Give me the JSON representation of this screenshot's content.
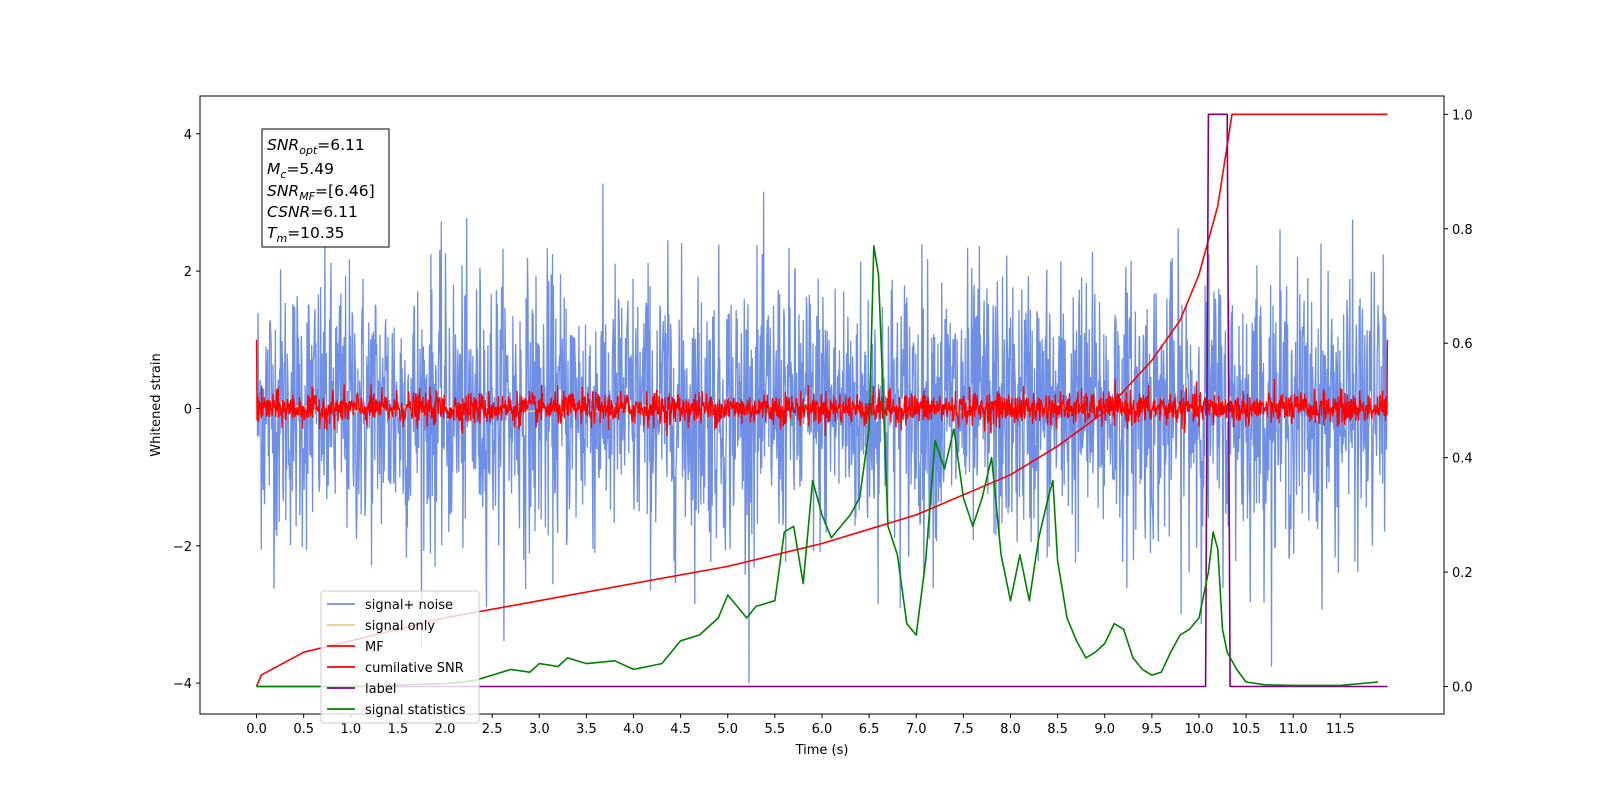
{
  "chart_data": {
    "type": "line",
    "xlabel": "Time (s)",
    "ylabel": "Whitened strain",
    "xlim": [
      -0.6,
      12.6
    ],
    "ylim_left": [
      -4.45,
      4.55
    ],
    "ylim_right": [
      -0.048,
      1.032
    ],
    "x_ticks": [
      "0.0",
      "0.5",
      "1.0",
      "1.5",
      "2.0",
      "2.5",
      "3.0",
      "3.5",
      "4.0",
      "4.5",
      "5.0",
      "5.5",
      "6.0",
      "6.5",
      "7.0",
      "7.5",
      "8.0",
      "8.5",
      "9.0",
      "9.5",
      "10.0",
      "10.5",
      "11.0",
      "11.5"
    ],
    "y_ticks_left": [
      -4,
      -2,
      0,
      2,
      4
    ],
    "y_ticks_right": [
      "0.0",
      "0.2",
      "0.4",
      "0.6",
      "0.8",
      "1.0"
    ],
    "grid": false,
    "legend_placement": "lower-left",
    "series": [
      {
        "name": "signal+ noise",
        "color": "#6f8fe6",
        "axis": "left",
        "style": "noise",
        "x_range": [
          0.0,
          12.0
        ],
        "amplitude_sd": 1.0
      },
      {
        "name": "signal only",
        "color": "#f5c77e",
        "axis": "left",
        "style": "chirp",
        "x_range": [
          0.0,
          10.35
        ]
      },
      {
        "name": "MF",
        "color": "#ff0000",
        "axis": "left",
        "style": "noise",
        "x_range": [
          0.0,
          12.0
        ],
        "amplitude_sd": 0.12
      },
      {
        "name": "cumilative SNR",
        "color": "#ff0000",
        "axis": "right",
        "x": [
          0.0,
          0.05,
          0.5,
          1.0,
          1.5,
          2.0,
          3.0,
          4.0,
          5.0,
          6.0,
          7.0,
          8.0,
          8.5,
          9.0,
          9.5,
          9.8,
          10.0,
          10.2,
          10.35,
          12.0
        ],
        "y": [
          0.0,
          0.02,
          0.06,
          0.08,
          0.1,
          0.12,
          0.15,
          0.18,
          0.21,
          0.25,
          0.3,
          0.37,
          0.42,
          0.48,
          0.57,
          0.64,
          0.72,
          0.84,
          1.0,
          1.0
        ]
      },
      {
        "name": "label",
        "color": "#800080",
        "axis": "right",
        "x": [
          0.0,
          10.07,
          10.1,
          10.3,
          10.33,
          12.0
        ],
        "y": [
          0.0,
          0.0,
          1.0,
          1.0,
          0.0,
          0.0
        ]
      },
      {
        "name": "signal statistics",
        "color": "#008000",
        "axis": "right",
        "x": [
          0.0,
          1.0,
          2.0,
          2.3,
          2.5,
          2.7,
          2.9,
          3.0,
          3.2,
          3.3,
          3.5,
          3.8,
          4.0,
          4.3,
          4.5,
          4.7,
          4.9,
          5.0,
          5.1,
          5.2,
          5.3,
          5.5,
          5.6,
          5.7,
          5.8,
          5.9,
          6.0,
          6.1,
          6.2,
          6.3,
          6.4,
          6.5,
          6.55,
          6.6,
          6.7,
          6.8,
          6.9,
          7.0,
          7.1,
          7.2,
          7.3,
          7.4,
          7.5,
          7.6,
          7.7,
          7.8,
          7.9,
          8.0,
          8.1,
          8.2,
          8.3,
          8.4,
          8.45,
          8.5,
          8.6,
          8.7,
          8.8,
          8.9,
          9.0,
          9.1,
          9.2,
          9.3,
          9.4,
          9.5,
          9.6,
          9.7,
          9.8,
          9.9,
          10.0,
          10.1,
          10.15,
          10.2,
          10.25,
          10.3,
          10.4,
          10.5,
          10.7,
          11.0,
          11.5,
          11.9
        ],
        "y": [
          0.0,
          0.0,
          0.005,
          0.01,
          0.02,
          0.03,
          0.025,
          0.04,
          0.035,
          0.05,
          0.04,
          0.045,
          0.03,
          0.04,
          0.08,
          0.09,
          0.12,
          0.16,
          0.14,
          0.12,
          0.14,
          0.15,
          0.27,
          0.28,
          0.18,
          0.36,
          0.3,
          0.26,
          0.28,
          0.3,
          0.33,
          0.45,
          0.77,
          0.72,
          0.28,
          0.23,
          0.11,
          0.09,
          0.22,
          0.43,
          0.38,
          0.45,
          0.33,
          0.28,
          0.33,
          0.4,
          0.23,
          0.15,
          0.23,
          0.15,
          0.26,
          0.33,
          0.36,
          0.22,
          0.12,
          0.08,
          0.05,
          0.06,
          0.075,
          0.11,
          0.1,
          0.05,
          0.03,
          0.02,
          0.025,
          0.06,
          0.09,
          0.1,
          0.12,
          0.2,
          0.27,
          0.24,
          0.1,
          0.06,
          0.03,
          0.008,
          0.003,
          0.002,
          0.002,
          0.008
        ]
      }
    ]
  },
  "info_box": {
    "line1_sym": "SNR",
    "line1_sub": "opt",
    "line1_val": "=6.11",
    "line2_sym": "M",
    "line2_sub": "c",
    "line2_val": "=5.49",
    "line3_sym": "SNR",
    "line3_sub": "MF",
    "line3_val": "=[6.46]",
    "line4_sym": "CSNR",
    "line4_val": "=6.11",
    "line5_sym": "T",
    "line5_sub": "m",
    "line5_val": "=10.35"
  }
}
